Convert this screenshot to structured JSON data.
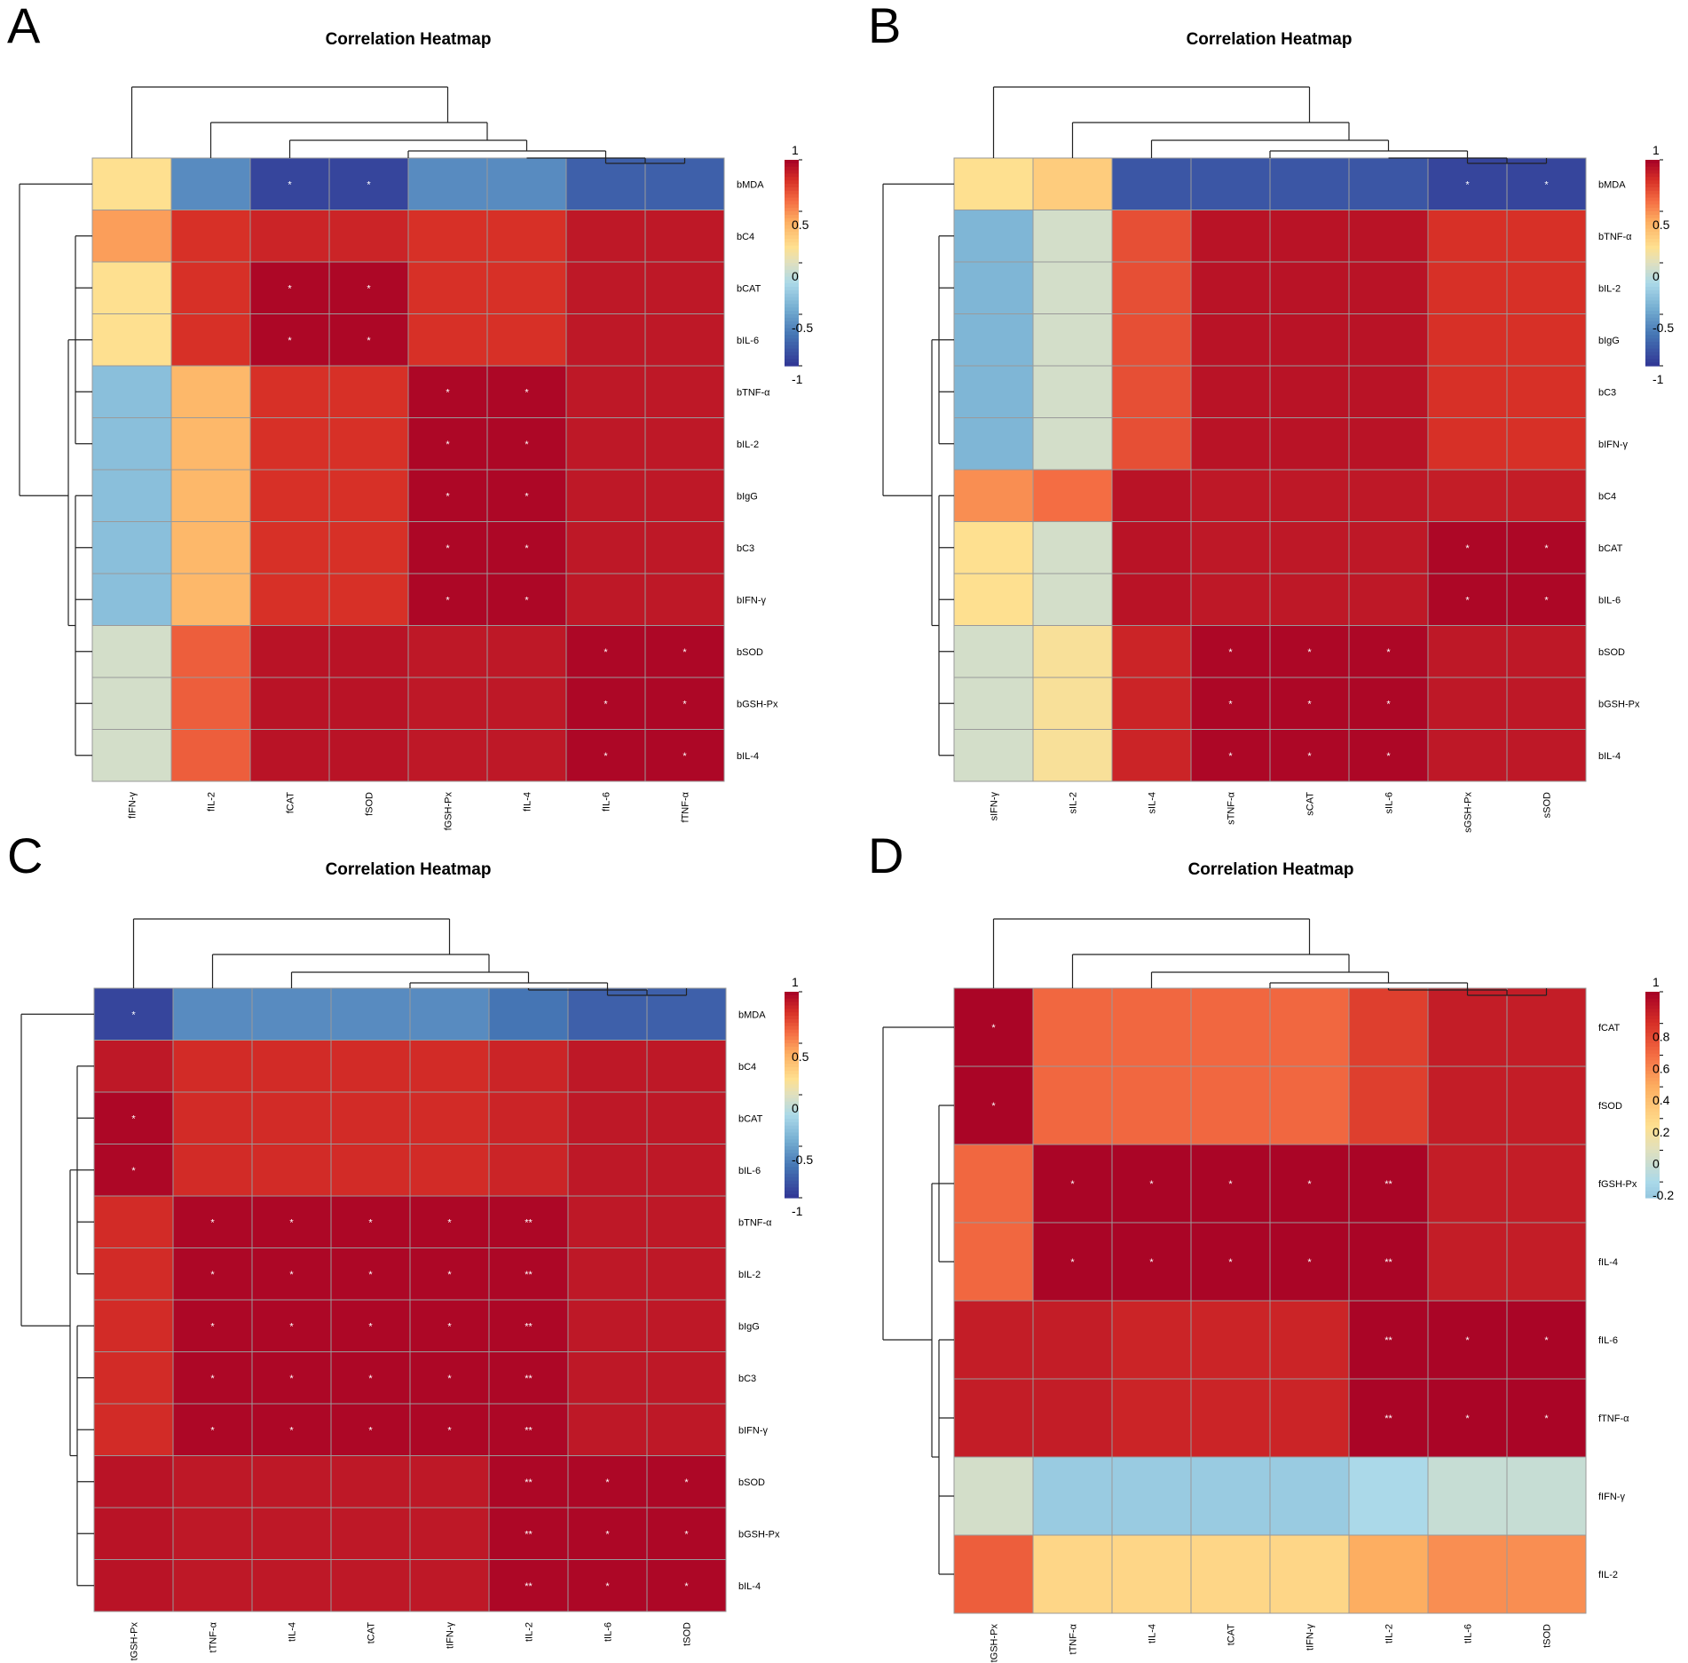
{
  "chart_data": [
    {
      "panel": "A",
      "type": "heatmap",
      "title": "Correlation Heatmap",
      "rows": [
        "bMDA",
        "bC4",
        "bCAT",
        "bIL-6",
        "bTNF-α",
        "bIL-2",
        "bIgG",
        "bC3",
        "bIFN-γ",
        "bSOD",
        "bGSH-Px",
        "bIL-4"
      ],
      "cols": [
        "fIFN-γ",
        "fIL-2",
        "fCAT",
        "fSOD",
        "fGSH-Px",
        "fIL-4",
        "fIL-6",
        "fTNF-α"
      ],
      "values": [
        [
          0.15,
          -0.6,
          -0.93,
          -0.93,
          -0.6,
          -0.6,
          -0.8,
          -0.8
        ],
        [
          0.45,
          0.8,
          0.85,
          0.85,
          0.8,
          0.8,
          0.9,
          0.9
        ],
        [
          0.15,
          0.8,
          0.97,
          0.97,
          0.8,
          0.8,
          0.9,
          0.9
        ],
        [
          0.15,
          0.8,
          0.97,
          0.97,
          0.8,
          0.8,
          0.9,
          0.9
        ],
        [
          -0.35,
          0.35,
          0.8,
          0.8,
          0.97,
          0.97,
          0.9,
          0.9
        ],
        [
          -0.35,
          0.35,
          0.8,
          0.8,
          0.97,
          0.97,
          0.9,
          0.9
        ],
        [
          -0.35,
          0.35,
          0.8,
          0.8,
          0.97,
          0.97,
          0.9,
          0.9
        ],
        [
          -0.35,
          0.35,
          0.8,
          0.8,
          0.97,
          0.97,
          0.9,
          0.9
        ],
        [
          -0.35,
          0.35,
          0.8,
          0.8,
          0.97,
          0.97,
          0.9,
          0.9
        ],
        [
          -0.05,
          0.65,
          0.92,
          0.92,
          0.9,
          0.9,
          0.97,
          0.97
        ],
        [
          -0.05,
          0.65,
          0.92,
          0.92,
          0.9,
          0.9,
          0.97,
          0.97
        ],
        [
          -0.05,
          0.65,
          0.92,
          0.92,
          0.9,
          0.9,
          0.97,
          0.97
        ]
      ],
      "significance": [
        [
          "",
          "",
          "*",
          "*",
          "",
          "",
          "",
          ""
        ],
        [
          "",
          "",
          "",
          "",
          "",
          "",
          "",
          ""
        ],
        [
          "",
          "",
          "*",
          "*",
          "",
          "",
          "",
          ""
        ],
        [
          "",
          "",
          "*",
          "*",
          "",
          "",
          "",
          ""
        ],
        [
          "",
          "",
          "",
          "",
          "*",
          "*",
          "",
          ""
        ],
        [
          "",
          "",
          "",
          "",
          "*",
          "*",
          "",
          ""
        ],
        [
          "",
          "",
          "",
          "",
          "*",
          "*",
          "",
          ""
        ],
        [
          "",
          "",
          "",
          "",
          "*",
          "*",
          "",
          ""
        ],
        [
          "",
          "",
          "",
          "",
          "*",
          "*",
          "",
          ""
        ],
        [
          "",
          "",
          "",
          "",
          "",
          "",
          "*",
          "*"
        ],
        [
          "",
          "",
          "",
          "",
          "",
          "",
          "*",
          "*"
        ],
        [
          "",
          "",
          "",
          "",
          "",
          "",
          "*",
          "*"
        ]
      ],
      "legend_range": [
        -1,
        1
      ],
      "legend_ticks": [
        "1",
        "0.5",
        "0",
        "-0.5",
        "-1"
      ]
    },
    {
      "panel": "B",
      "type": "heatmap",
      "title": "Correlation Heatmap",
      "rows": [
        "bMDA",
        "bTNF-α",
        "bIL-2",
        "bIgG",
        "bC3",
        "bIFN-γ",
        "bC4",
        "bCAT",
        "bIL-6",
        "bSOD",
        "bGSH-Px",
        "bIL-4"
      ],
      "cols": [
        "sIFN-γ",
        "sIL-2",
        "sIL-4",
        "sTNF-α",
        "sCAT",
        "sIL-6",
        "sGSH-Px",
        "sSOD"
      ],
      "values": [
        [
          0.15,
          0.25,
          -0.85,
          -0.85,
          -0.85,
          -0.85,
          -0.93,
          -0.93
        ],
        [
          -0.4,
          -0.05,
          0.7,
          0.92,
          0.92,
          0.92,
          0.8,
          0.8
        ],
        [
          -0.4,
          -0.05,
          0.7,
          0.92,
          0.92,
          0.92,
          0.8,
          0.8
        ],
        [
          -0.4,
          -0.05,
          0.7,
          0.92,
          0.92,
          0.92,
          0.8,
          0.8
        ],
        [
          -0.4,
          -0.05,
          0.7,
          0.92,
          0.92,
          0.92,
          0.8,
          0.8
        ],
        [
          -0.4,
          -0.05,
          0.7,
          0.92,
          0.92,
          0.92,
          0.8,
          0.8
        ],
        [
          0.5,
          0.6,
          0.92,
          0.9,
          0.9,
          0.9,
          0.88,
          0.88
        ],
        [
          0.15,
          -0.05,
          0.92,
          0.9,
          0.9,
          0.9,
          0.97,
          0.97
        ],
        [
          0.15,
          -0.05,
          0.92,
          0.9,
          0.9,
          0.9,
          0.97,
          0.97
        ],
        [
          -0.05,
          0.12,
          0.85,
          0.97,
          0.97,
          0.97,
          0.9,
          0.9
        ],
        [
          -0.05,
          0.12,
          0.85,
          0.97,
          0.97,
          0.97,
          0.9,
          0.9
        ],
        [
          -0.05,
          0.12,
          0.85,
          0.97,
          0.97,
          0.97,
          0.9,
          0.9
        ]
      ],
      "significance": [
        [
          "",
          "",
          "",
          "",
          "",
          "",
          "*",
          "*"
        ],
        [
          "",
          "",
          "",
          "",
          "",
          "",
          "",
          ""
        ],
        [
          "",
          "",
          "",
          "",
          "",
          "",
          "",
          ""
        ],
        [
          "",
          "",
          "",
          "",
          "",
          "",
          "",
          ""
        ],
        [
          "",
          "",
          "",
          "",
          "",
          "",
          "",
          ""
        ],
        [
          "",
          "",
          "",
          "",
          "",
          "",
          "",
          ""
        ],
        [
          "",
          "",
          "",
          "",
          "",
          "",
          "",
          ""
        ],
        [
          "",
          "",
          "",
          "",
          "",
          "",
          "*",
          "*"
        ],
        [
          "",
          "",
          "",
          "",
          "",
          "",
          "*",
          "*"
        ],
        [
          "",
          "",
          "",
          "*",
          "*",
          "*",
          "",
          ""
        ],
        [
          "",
          "",
          "",
          "*",
          "*",
          "*",
          "",
          ""
        ],
        [
          "",
          "",
          "",
          "*",
          "*",
          "*",
          "",
          ""
        ]
      ],
      "legend_range": [
        -1,
        1
      ],
      "legend_ticks": [
        "1",
        "0.5",
        "0",
        "-0.5",
        "-1"
      ]
    },
    {
      "panel": "C",
      "type": "heatmap",
      "title": "Correlation Heatmap",
      "rows": [
        "bMDA",
        "bC4",
        "bCAT",
        "bIL-6",
        "bTNF-α",
        "bIL-2",
        "bIgG",
        "bC3",
        "bIFN-γ",
        "bSOD",
        "bGSH-Px",
        "bIL-4"
      ],
      "cols": [
        "tGSH-Px",
        "tTNF-α",
        "tIL-4",
        "tCAT",
        "tIFN-γ",
        "tIL-2",
        "tIL-6",
        "tSOD"
      ],
      "values": [
        [
          -0.93,
          -0.6,
          -0.6,
          -0.6,
          -0.6,
          -0.7,
          -0.8,
          -0.8
        ],
        [
          0.9,
          0.82,
          0.82,
          0.82,
          0.82,
          0.85,
          0.9,
          0.9
        ],
        [
          0.97,
          0.82,
          0.82,
          0.82,
          0.82,
          0.85,
          0.9,
          0.9
        ],
        [
          0.97,
          0.82,
          0.82,
          0.82,
          0.82,
          0.85,
          0.9,
          0.9
        ],
        [
          0.82,
          0.97,
          0.97,
          0.97,
          0.97,
          0.97,
          0.9,
          0.9
        ],
        [
          0.82,
          0.97,
          0.97,
          0.97,
          0.97,
          0.97,
          0.9,
          0.9
        ],
        [
          0.82,
          0.97,
          0.97,
          0.97,
          0.97,
          0.97,
          0.9,
          0.9
        ],
        [
          0.82,
          0.97,
          0.97,
          0.97,
          0.97,
          0.97,
          0.9,
          0.9
        ],
        [
          0.82,
          0.97,
          0.97,
          0.97,
          0.97,
          0.97,
          0.9,
          0.9
        ],
        [
          0.92,
          0.9,
          0.9,
          0.9,
          0.9,
          0.97,
          0.97,
          0.97
        ],
        [
          0.92,
          0.9,
          0.9,
          0.9,
          0.9,
          0.97,
          0.97,
          0.97
        ],
        [
          0.92,
          0.9,
          0.9,
          0.9,
          0.9,
          0.97,
          0.97,
          0.97
        ]
      ],
      "significance": [
        [
          "*",
          "",
          "",
          "",
          "",
          "",
          "",
          ""
        ],
        [
          "",
          "",
          "",
          "",
          "",
          "",
          "",
          ""
        ],
        [
          "*",
          "",
          "",
          "",
          "",
          "",
          "",
          ""
        ],
        [
          "*",
          "",
          "",
          "",
          "",
          "",
          "",
          ""
        ],
        [
          "",
          "*",
          "*",
          "*",
          "*",
          "**",
          "",
          ""
        ],
        [
          "",
          "*",
          "*",
          "*",
          "*",
          "**",
          "",
          ""
        ],
        [
          "",
          "*",
          "*",
          "*",
          "*",
          "**",
          "",
          ""
        ],
        [
          "",
          "*",
          "*",
          "*",
          "*",
          "**",
          "",
          ""
        ],
        [
          "",
          "*",
          "*",
          "*",
          "*",
          "**",
          "",
          ""
        ],
        [
          "",
          "",
          "",
          "",
          "",
          "**",
          "*",
          "*"
        ],
        [
          "",
          "",
          "",
          "",
          "",
          "**",
          "*",
          "*"
        ],
        [
          "",
          "",
          "",
          "",
          "",
          "**",
          "*",
          "*"
        ]
      ],
      "legend_range": [
        -1,
        1
      ],
      "legend_ticks": [
        "1",
        "0.5",
        "0",
        "-0.5",
        "-1"
      ]
    },
    {
      "panel": "D",
      "type": "heatmap",
      "title": "Correlation Heatmap",
      "rows": [
        "fCAT",
        "fSOD",
        "fGSH-Px",
        "fIL-4",
        "fIL-6",
        "fTNF-α",
        "fIFN-γ",
        "fIL-2"
      ],
      "cols": [
        "tGSH-Px",
        "tTNF-α",
        "tIL-4",
        "tCAT",
        "tIFN-γ",
        "tIL-2",
        "tIL-6",
        "tSOD"
      ],
      "values": [
        [
          0.98,
          0.62,
          0.62,
          0.62,
          0.62,
          0.75,
          0.88,
          0.88
        ],
        [
          0.98,
          0.62,
          0.62,
          0.62,
          0.62,
          0.75,
          0.88,
          0.88
        ],
        [
          0.62,
          0.98,
          0.98,
          0.98,
          0.98,
          0.98,
          0.88,
          0.88
        ],
        [
          0.62,
          0.98,
          0.98,
          0.98,
          0.98,
          0.98,
          0.88,
          0.88
        ],
        [
          0.88,
          0.88,
          0.85,
          0.85,
          0.85,
          0.98,
          0.98,
          0.98
        ],
        [
          0.88,
          0.88,
          0.85,
          0.85,
          0.85,
          0.98,
          0.98,
          0.98
        ],
        [
          -0.05,
          -0.28,
          -0.28,
          -0.28,
          -0.28,
          -0.2,
          -0.1,
          -0.1
        ],
        [
          0.65,
          0.2,
          0.2,
          0.2,
          0.2,
          0.4,
          0.5,
          0.5
        ]
      ],
      "significance": [
        [
          "*",
          "",
          "",
          "",
          "",
          "",
          "",
          ""
        ],
        [
          "*",
          "",
          "",
          "",
          "",
          "",
          "",
          ""
        ],
        [
          "",
          "*",
          "*",
          "*",
          "*",
          "**",
          "",
          ""
        ],
        [
          "",
          "*",
          "*",
          "*",
          "*",
          "**",
          "",
          ""
        ],
        [
          "",
          "",
          "",
          "",
          "",
          "**",
          "*",
          "*"
        ],
        [
          "",
          "",
          "",
          "",
          "",
          "**",
          "*",
          "*"
        ],
        [
          "",
          "",
          "",
          "",
          "",
          "",
          "",
          ""
        ],
        [
          "",
          "",
          "",
          "",
          "",
          "",
          "",
          ""
        ]
      ],
      "legend_range": [
        -0.3,
        1
      ],
      "legend_ticks": [
        "1",
        "0.8",
        "0.6",
        "0.4",
        "0.2",
        "0",
        "-0.2"
      ]
    }
  ]
}
